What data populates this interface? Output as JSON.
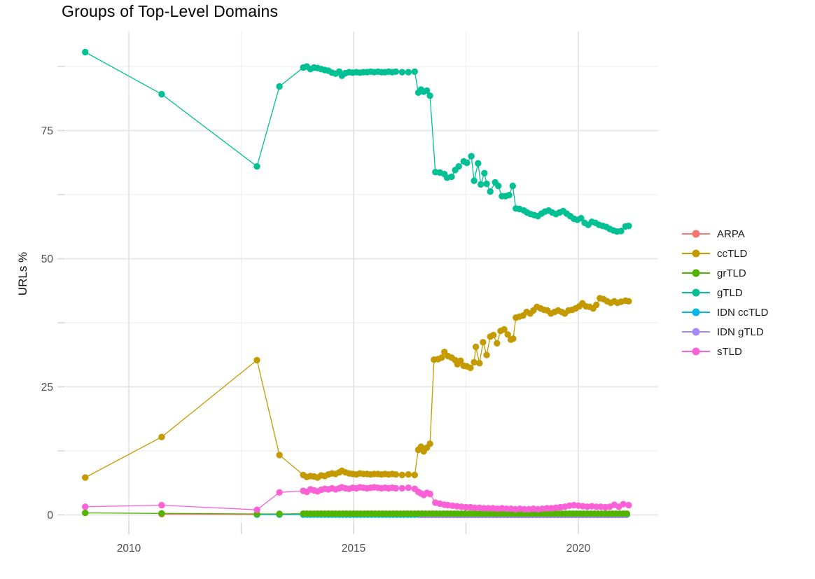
{
  "title": "Groups of Top-Level Domains",
  "chart_data": {
    "type": "line",
    "title": "Groups of Top-Level Domains",
    "xlabel": "",
    "ylabel": "URLs %",
    "xlim": [
      2008.6,
      2021.8
    ],
    "ylim": [
      -1.5,
      94.3
    ],
    "x_ticks_major": [
      2010,
      2015,
      2020
    ],
    "x_ticks_minor": [
      2012.5,
      2017.5
    ],
    "y_ticks_major": [
      0,
      25,
      50,
      75
    ],
    "y_ticks_minor": [
      12.5,
      37.5,
      62.5,
      87.5
    ],
    "grid": true,
    "legend_position": "right",
    "axis_text_color": "#4d4d4d",
    "major_grid_color": "#e7e7e7",
    "minor_grid_color": "#f2f2f2",
    "tick_color": "#d6d6d6",
    "series": [
      {
        "name": "ARPA",
        "color": "#F8766D",
        "points": [
          [
            2010.73,
            0.15
          ],
          [
            2012.85,
            0.1
          ]
        ]
      },
      {
        "name": "ccTLD",
        "color": "#C49A00",
        "points": [
          [
            2009.03,
            7.3
          ],
          [
            2010.73,
            15.2
          ],
          [
            2012.85,
            30.2
          ],
          [
            2013.35,
            11.7
          ],
          [
            2013.88,
            7.8
          ],
          [
            2013.96,
            7.4
          ],
          [
            2014.04,
            7.6
          ],
          [
            2014.12,
            7.5
          ],
          [
            2014.2,
            7.3
          ],
          [
            2014.28,
            7.7
          ],
          [
            2014.36,
            7.6
          ],
          [
            2014.44,
            7.9
          ],
          [
            2014.52,
            8.1
          ],
          [
            2014.6,
            8.0
          ],
          [
            2014.68,
            8.3
          ],
          [
            2014.74,
            8.6
          ],
          [
            2014.82,
            8.3
          ],
          [
            2014.9,
            8.1
          ],
          [
            2014.98,
            8.0
          ],
          [
            2015.06,
            7.9
          ],
          [
            2015.14,
            8.1
          ],
          [
            2015.22,
            8.0
          ],
          [
            2015.3,
            8.0
          ],
          [
            2015.38,
            7.9
          ],
          [
            2015.46,
            8.0
          ],
          [
            2015.54,
            8.0
          ],
          [
            2015.62,
            7.9
          ],
          [
            2015.7,
            8.0
          ],
          [
            2015.78,
            7.9
          ],
          [
            2015.86,
            8.0
          ],
          [
            2015.94,
            7.9
          ],
          [
            2016.08,
            7.8
          ],
          [
            2016.22,
            7.9
          ],
          [
            2016.36,
            7.8
          ],
          [
            2016.44,
            12.7
          ],
          [
            2016.5,
            13.3
          ],
          [
            2016.56,
            12.4
          ],
          [
            2016.63,
            13.1
          ],
          [
            2016.7,
            13.9
          ],
          [
            2016.79,
            30.3
          ],
          [
            2016.88,
            30.4
          ],
          [
            2016.96,
            30.7
          ],
          [
            2017.02,
            31.8
          ],
          [
            2017.1,
            31.0
          ],
          [
            2017.18,
            30.7
          ],
          [
            2017.26,
            30.2
          ],
          [
            2017.31,
            29.4
          ],
          [
            2017.38,
            30.1
          ],
          [
            2017.45,
            29.1
          ],
          [
            2017.52,
            29.0
          ],
          [
            2017.6,
            28.7
          ],
          [
            2017.68,
            29.8
          ],
          [
            2017.72,
            32.8
          ],
          [
            2017.8,
            29.6
          ],
          [
            2017.88,
            33.7
          ],
          [
            2017.96,
            31.2
          ],
          [
            2018.04,
            34.8
          ],
          [
            2018.11,
            35.1
          ],
          [
            2018.19,
            33.5
          ],
          [
            2018.27,
            35.9
          ],
          [
            2018.35,
            36.2
          ],
          [
            2018.43,
            35.2
          ],
          [
            2018.5,
            34.2
          ],
          [
            2018.55,
            34.4
          ],
          [
            2018.61,
            38.5
          ],
          [
            2018.69,
            38.7
          ],
          [
            2018.77,
            38.9
          ],
          [
            2018.85,
            39.6
          ],
          [
            2018.93,
            39.3
          ],
          [
            2019.0,
            39.9
          ],
          [
            2019.08,
            40.6
          ],
          [
            2019.16,
            40.3
          ],
          [
            2019.24,
            40.0
          ],
          [
            2019.31,
            39.9
          ],
          [
            2019.39,
            39.3
          ],
          [
            2019.47,
            39.6
          ],
          [
            2019.55,
            39.9
          ],
          [
            2019.63,
            39.6
          ],
          [
            2019.7,
            39.3
          ],
          [
            2019.78,
            39.9
          ],
          [
            2019.86,
            40.0
          ],
          [
            2019.94,
            40.3
          ],
          [
            2020.02,
            40.7
          ],
          [
            2020.09,
            41.3
          ],
          [
            2020.17,
            40.7
          ],
          [
            2020.25,
            40.6
          ],
          [
            2020.33,
            40.3
          ],
          [
            2020.4,
            41.0
          ],
          [
            2020.48,
            42.3
          ],
          [
            2020.56,
            42.1
          ],
          [
            2020.64,
            41.7
          ],
          [
            2020.72,
            41.4
          ],
          [
            2020.8,
            41.7
          ],
          [
            2020.87,
            41.4
          ],
          [
            2020.95,
            41.6
          ],
          [
            2021.05,
            41.8
          ],
          [
            2021.12,
            41.7
          ]
        ]
      },
      {
        "name": "grTLD",
        "color": "#53B400",
        "points": [
          [
            2009.03,
            0.4
          ],
          [
            2010.73,
            0.3
          ],
          [
            2012.85,
            0.2
          ],
          [
            2013.35,
            0.2
          ]
        ],
        "constant": {
          "from": 2013.88,
          "to": 2021.12,
          "step": 0.08,
          "value": 0.25
        }
      },
      {
        "name": "gTLD",
        "color": "#00C094",
        "points": [
          [
            2009.03,
            90.3
          ],
          [
            2010.73,
            82.1
          ],
          [
            2012.85,
            68.0
          ],
          [
            2013.35,
            83.6
          ],
          [
            2013.88,
            87.3
          ],
          [
            2013.96,
            87.5
          ],
          [
            2014.04,
            87.0
          ],
          [
            2014.12,
            87.3
          ],
          [
            2014.2,
            87.2
          ],
          [
            2014.28,
            87.0
          ],
          [
            2014.36,
            86.8
          ],
          [
            2014.44,
            86.7
          ],
          [
            2014.52,
            86.3
          ],
          [
            2014.6,
            86.1
          ],
          [
            2014.68,
            86.5
          ],
          [
            2014.74,
            85.7
          ],
          [
            2014.82,
            86.2
          ],
          [
            2014.9,
            86.4
          ],
          [
            2014.98,
            86.3
          ],
          [
            2015.06,
            86.4
          ],
          [
            2015.14,
            86.3
          ],
          [
            2015.22,
            86.4
          ],
          [
            2015.3,
            86.4
          ],
          [
            2015.38,
            86.5
          ],
          [
            2015.46,
            86.4
          ],
          [
            2015.54,
            86.5
          ],
          [
            2015.62,
            86.4
          ],
          [
            2015.7,
            86.4
          ],
          [
            2015.78,
            86.5
          ],
          [
            2015.86,
            86.4
          ],
          [
            2015.94,
            86.5
          ],
          [
            2016.08,
            86.4
          ],
          [
            2016.22,
            86.4
          ],
          [
            2016.36,
            86.5
          ],
          [
            2016.44,
            82.4
          ],
          [
            2016.5,
            83.0
          ],
          [
            2016.56,
            82.6
          ],
          [
            2016.63,
            82.8
          ],
          [
            2016.7,
            81.8
          ],
          [
            2016.82,
            66.9
          ],
          [
            2016.92,
            66.8
          ],
          [
            2017.02,
            66.5
          ],
          [
            2017.08,
            65.8
          ],
          [
            2017.18,
            66.0
          ],
          [
            2017.26,
            67.3
          ],
          [
            2017.34,
            68.0
          ],
          [
            2017.45,
            69.0
          ],
          [
            2017.52,
            68.7
          ],
          [
            2017.62,
            70.0
          ],
          [
            2017.68,
            65.2
          ],
          [
            2017.77,
            68.6
          ],
          [
            2017.83,
            64.5
          ],
          [
            2017.91,
            66.7
          ],
          [
            2017.96,
            64.6
          ],
          [
            2018.04,
            63.1
          ],
          [
            2018.15,
            64.9
          ],
          [
            2018.22,
            64.2
          ],
          [
            2018.3,
            62.2
          ],
          [
            2018.38,
            62.2
          ],
          [
            2018.46,
            62.4
          ],
          [
            2018.54,
            64.2
          ],
          [
            2018.61,
            59.8
          ],
          [
            2018.69,
            59.7
          ],
          [
            2018.79,
            59.4
          ],
          [
            2018.86,
            59.0
          ],
          [
            2018.94,
            58.7
          ],
          [
            2019.02,
            58.5
          ],
          [
            2019.1,
            58.3
          ],
          [
            2019.18,
            58.8
          ],
          [
            2019.26,
            59.2
          ],
          [
            2019.34,
            59.4
          ],
          [
            2019.42,
            59.0
          ],
          [
            2019.5,
            58.7
          ],
          [
            2019.58,
            59.0
          ],
          [
            2019.66,
            59.3
          ],
          [
            2019.74,
            58.8
          ],
          [
            2019.82,
            58.3
          ],
          [
            2019.9,
            57.8
          ],
          [
            2019.98,
            57.6
          ],
          [
            2020.06,
            57.9
          ],
          [
            2020.14,
            57.0
          ],
          [
            2020.22,
            56.6
          ],
          [
            2020.3,
            57.2
          ],
          [
            2020.38,
            57.0
          ],
          [
            2020.46,
            56.6
          ],
          [
            2020.54,
            56.4
          ],
          [
            2020.62,
            56.2
          ],
          [
            2020.7,
            55.8
          ],
          [
            2020.78,
            55.5
          ],
          [
            2020.86,
            55.3
          ],
          [
            2020.95,
            55.4
          ],
          [
            2021.05,
            56.3
          ],
          [
            2021.12,
            56.4
          ]
        ]
      },
      {
        "name": "IDN ccTLD",
        "color": "#00B6EB",
        "points": [
          [
            2012.85,
            0.05
          ],
          [
            2013.35,
            0.05
          ]
        ],
        "constant": {
          "from": 2013.88,
          "to": 2021.12,
          "step": 0.08,
          "value": 0.05
        }
      },
      {
        "name": "IDN gTLD",
        "color": "#A58AFF",
        "points": [],
        "constant": {
          "from": 2016.5,
          "to": 2021.12,
          "step": 0.08,
          "value": 0.0
        }
      },
      {
        "name": "sTLD",
        "color": "#FB61D7",
        "points": [
          [
            2009.03,
            1.6
          ],
          [
            2010.73,
            1.9
          ],
          [
            2012.85,
            1.0
          ],
          [
            2013.35,
            4.4
          ],
          [
            2013.88,
            4.7
          ],
          [
            2013.96,
            4.5
          ],
          [
            2014.04,
            5.0
          ],
          [
            2014.12,
            4.8
          ],
          [
            2014.2,
            4.6
          ],
          [
            2014.28,
            4.9
          ],
          [
            2014.36,
            5.1
          ],
          [
            2014.44,
            5.0
          ],
          [
            2014.52,
            5.2
          ],
          [
            2014.6,
            5.0
          ],
          [
            2014.68,
            5.2
          ],
          [
            2014.74,
            5.4
          ],
          [
            2014.82,
            5.2
          ],
          [
            2014.9,
            5.1
          ],
          [
            2014.98,
            5.3
          ],
          [
            2015.06,
            5.2
          ],
          [
            2015.14,
            5.4
          ],
          [
            2015.22,
            5.3
          ],
          [
            2015.3,
            5.2
          ],
          [
            2015.38,
            5.3
          ],
          [
            2015.46,
            5.4
          ],
          [
            2015.54,
            5.3
          ],
          [
            2015.62,
            5.2
          ],
          [
            2015.7,
            5.3
          ],
          [
            2015.78,
            5.2
          ],
          [
            2015.86,
            5.3
          ],
          [
            2015.94,
            5.2
          ],
          [
            2016.08,
            5.2
          ],
          [
            2016.22,
            5.3
          ],
          [
            2016.36,
            5.1
          ],
          [
            2016.44,
            4.5
          ],
          [
            2016.5,
            4.2
          ],
          [
            2016.56,
            3.9
          ],
          [
            2016.63,
            4.3
          ],
          [
            2016.7,
            4.1
          ],
          [
            2016.82,
            2.4
          ],
          [
            2016.92,
            2.2
          ],
          [
            2017.02,
            2.0
          ],
          [
            2017.1,
            1.9
          ],
          [
            2017.2,
            1.8
          ],
          [
            2017.3,
            1.7
          ],
          [
            2017.4,
            1.6
          ],
          [
            2017.5,
            1.5
          ],
          [
            2017.6,
            1.5
          ],
          [
            2017.7,
            1.4
          ],
          [
            2017.8,
            1.4
          ],
          [
            2017.9,
            1.3
          ],
          [
            2018.0,
            1.3
          ],
          [
            2018.1,
            1.3
          ],
          [
            2018.2,
            1.2
          ],
          [
            2018.3,
            1.3
          ],
          [
            2018.4,
            1.2
          ],
          [
            2018.5,
            1.2
          ],
          [
            2018.6,
            1.1
          ],
          [
            2018.7,
            1.2
          ],
          [
            2018.8,
            1.1
          ],
          [
            2018.9,
            1.1
          ],
          [
            2019.0,
            1.2
          ],
          [
            2019.1,
            1.1
          ],
          [
            2019.2,
            1.2
          ],
          [
            2019.3,
            1.3
          ],
          [
            2019.4,
            1.3
          ],
          [
            2019.5,
            1.4
          ],
          [
            2019.6,
            1.5
          ],
          [
            2019.7,
            1.6
          ],
          [
            2019.8,
            1.8
          ],
          [
            2019.9,
            1.9
          ],
          [
            2020.0,
            1.8
          ],
          [
            2020.1,
            1.7
          ],
          [
            2020.2,
            1.6
          ],
          [
            2020.3,
            1.7
          ],
          [
            2020.4,
            1.6
          ],
          [
            2020.5,
            1.6
          ],
          [
            2020.6,
            1.5
          ],
          [
            2020.7,
            1.6
          ],
          [
            2020.8,
            2.0
          ],
          [
            2020.9,
            1.6
          ],
          [
            2021.0,
            2.1
          ],
          [
            2021.12,
            1.9
          ]
        ]
      }
    ]
  }
}
